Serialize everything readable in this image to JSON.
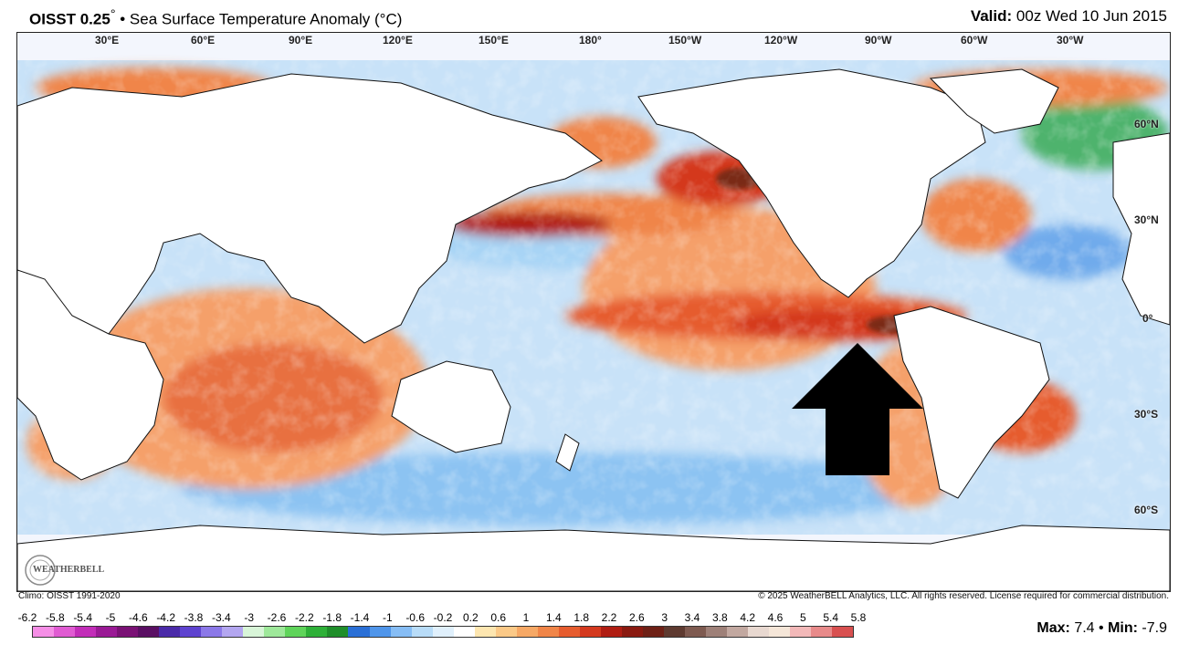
{
  "header": {
    "product": "OISST 0.25",
    "degree_mark": "°",
    "separator": "•",
    "variable": "Sea Surface Temperature Anomaly (°C)",
    "valid_label": "Valid:",
    "valid_time": "00z Wed 10 Jun 2015"
  },
  "map": {
    "longitude_labels": [
      "30°E",
      "60°E",
      "90°E",
      "120°E",
      "150°E",
      "180°",
      "150°W",
      "120°W",
      "90°W",
      "60°W",
      "30°W"
    ],
    "latitude_labels": [
      "60°N",
      "30°N",
      "0°",
      "30°S",
      "60°S"
    ],
    "annotation": "black-arrow-pointing-up",
    "colors": {
      "land": "#ffffff",
      "ice": "#f3f6fd",
      "warm": "#f5a06a",
      "hot": "#d8401e",
      "very_hot": "#7a2a12",
      "cool": "#a8d4f5",
      "cold": "#5b9ee8",
      "very_cold": "#2fa84a"
    }
  },
  "footer": {
    "climo": "Climo: OISST 1991-2020",
    "copyright": "© 2025 WeatherBELL Analytics, LLC. All rights reserved. License required for commercial distribution.",
    "logo_text": "WEATHERBELL",
    "max_label": "Max:",
    "max_value": "7.4",
    "bullet": "•",
    "min_label": "Min:",
    "min_value": "-7.9"
  },
  "colorbar": {
    "ticks": [
      "-6.2",
      "-5.8",
      "-5.4",
      "-5",
      "-4.6",
      "-4.2",
      "-3.8",
      "-3.4",
      "-3",
      "-2.6",
      "-2.2",
      "-1.8",
      "-1.4",
      "-1",
      "-0.6",
      "-0.2",
      "0.2",
      "0.6",
      "1",
      "1.4",
      "1.8",
      "2.2",
      "2.6",
      "3",
      "3.4",
      "3.8",
      "4.2",
      "4.6",
      "5",
      "5.4",
      "5.8"
    ],
    "colors": [
      "#f58ee6",
      "#e05bd2",
      "#c22db8",
      "#9a1a95",
      "#7a1175",
      "#5a0f63",
      "#4a2aa8",
      "#5e43d0",
      "#8b78e8",
      "#b3a6f0",
      "#d8f5d8",
      "#9ee89a",
      "#5fd45a",
      "#2eb038",
      "#1f8e2a",
      "#2a6fd6",
      "#4f95ea",
      "#86bdf5",
      "#b8dcf8",
      "#e0f0fc",
      "#ffffff",
      "#fde6b0",
      "#fbc987",
      "#f6a865",
      "#f08548",
      "#e65c2e",
      "#d4391e",
      "#b01d12",
      "#8a1a10",
      "#6e2016",
      "#5e3a30",
      "#7e5a50",
      "#9e8078",
      "#c2a8a0",
      "#e8d8d0",
      "#f5e6d8",
      "#f2b8b8",
      "#e88a8a",
      "#d85050"
    ]
  }
}
